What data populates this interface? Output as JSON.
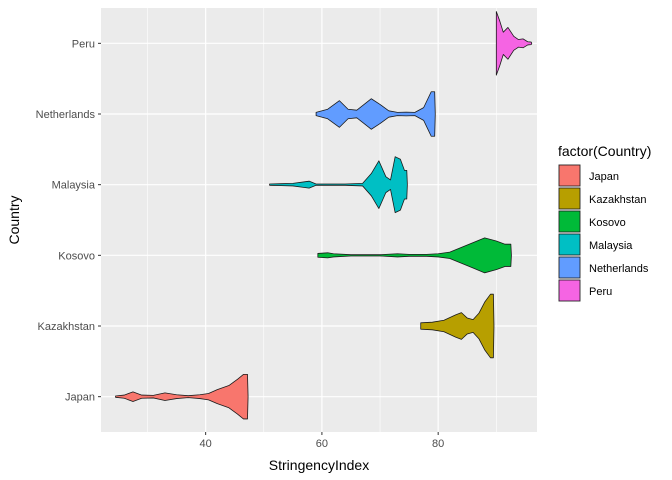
{
  "chart_data": {
    "type": "violin",
    "orientation": "horizontal",
    "xlabel": "StringencyIndex",
    "ylabel": "Country",
    "xlim": [
      22,
      97
    ],
    "xticks": [
      40,
      60,
      80
    ],
    "grid": true,
    "legend_title": "factor(Country)",
    "legend_position": "right",
    "categories": [
      "Japan",
      "Kazakhstan",
      "Kosovo",
      "Malaysia",
      "Netherlands",
      "Peru"
    ],
    "series": [
      {
        "name": "Japan",
        "color": "#F8766D",
        "density": [
          [
            24.5,
            0.02
          ],
          [
            26,
            0.05
          ],
          [
            27.5,
            0.15
          ],
          [
            29,
            0.05
          ],
          [
            31,
            0.04
          ],
          [
            33,
            0.12
          ],
          [
            35,
            0.06
          ],
          [
            37,
            0.03
          ],
          [
            39,
            0.06
          ],
          [
            40.5,
            0.1
          ],
          [
            42,
            0.22
          ],
          [
            44,
            0.35
          ],
          [
            45.5,
            0.55
          ],
          [
            46.5,
            0.7
          ],
          [
            47.2,
            0.7
          ],
          [
            47.3,
            0.0
          ]
        ]
      },
      {
        "name": "Kazakhstan",
        "color": "#B79F00",
        "density": [
          [
            77,
            0.1
          ],
          [
            79,
            0.12
          ],
          [
            81,
            0.18
          ],
          [
            83,
            0.35
          ],
          [
            84,
            0.42
          ],
          [
            85,
            0.25
          ],
          [
            86,
            0.2
          ],
          [
            87,
            0.4
          ],
          [
            88,
            0.75
          ],
          [
            89,
            1.0
          ],
          [
            89.5,
            1.0
          ],
          [
            89.6,
            0.0
          ]
        ]
      },
      {
        "name": "Kosovo",
        "color": "#00BA38",
        "density": [
          [
            59.3,
            0.06
          ],
          [
            61,
            0.08
          ],
          [
            62,
            0.05
          ],
          [
            65,
            0.02
          ],
          [
            70,
            0.02
          ],
          [
            73,
            0.05
          ],
          [
            75,
            0.03
          ],
          [
            78,
            0.03
          ],
          [
            80,
            0.05
          ],
          [
            82,
            0.1
          ],
          [
            84,
            0.25
          ],
          [
            86,
            0.4
          ],
          [
            88,
            0.55
          ],
          [
            90,
            0.45
          ],
          [
            91.5,
            0.35
          ],
          [
            92.5,
            0.35
          ],
          [
            92.6,
            0.0
          ]
        ]
      },
      {
        "name": "Malaysia",
        "color": "#00BFC4",
        "density": [
          [
            51,
            0.02
          ],
          [
            53,
            0.03
          ],
          [
            55,
            0.04
          ],
          [
            57,
            0.09
          ],
          [
            57.8,
            0.11
          ],
          [
            59,
            0.02
          ],
          [
            64,
            0.02
          ],
          [
            67,
            0.04
          ],
          [
            68.5,
            0.35
          ],
          [
            69.8,
            0.75
          ],
          [
            71,
            0.25
          ],
          [
            71.8,
            0.15
          ],
          [
            72.6,
            0.88
          ],
          [
            73.5,
            0.8
          ],
          [
            74.2,
            0.45
          ],
          [
            74.6,
            0.45
          ],
          [
            74.7,
            0.0
          ]
        ]
      },
      {
        "name": "Netherlands",
        "color": "#619CFF",
        "density": [
          [
            59,
            0.05
          ],
          [
            61,
            0.15
          ],
          [
            63,
            0.42
          ],
          [
            64.5,
            0.15
          ],
          [
            66,
            0.12
          ],
          [
            68.5,
            0.48
          ],
          [
            70,
            0.3
          ],
          [
            71.5,
            0.1
          ],
          [
            73,
            0.05
          ],
          [
            74.5,
            0.06
          ],
          [
            76,
            0.05
          ],
          [
            77.5,
            0.2
          ],
          [
            78.8,
            0.7
          ],
          [
            79.4,
            0.7
          ],
          [
            79.5,
            0.0
          ]
        ]
      },
      {
        "name": "Peru",
        "color": "#F564E3",
        "density": [
          [
            90,
            1.0
          ],
          [
            90.6,
            0.7
          ],
          [
            91.2,
            0.35
          ],
          [
            92,
            0.5
          ],
          [
            93,
            0.22
          ],
          [
            93.8,
            0.12
          ],
          [
            94.6,
            0.14
          ],
          [
            95.4,
            0.05
          ],
          [
            96.0,
            0.04
          ],
          [
            96.1,
            0.0
          ]
        ]
      }
    ]
  }
}
